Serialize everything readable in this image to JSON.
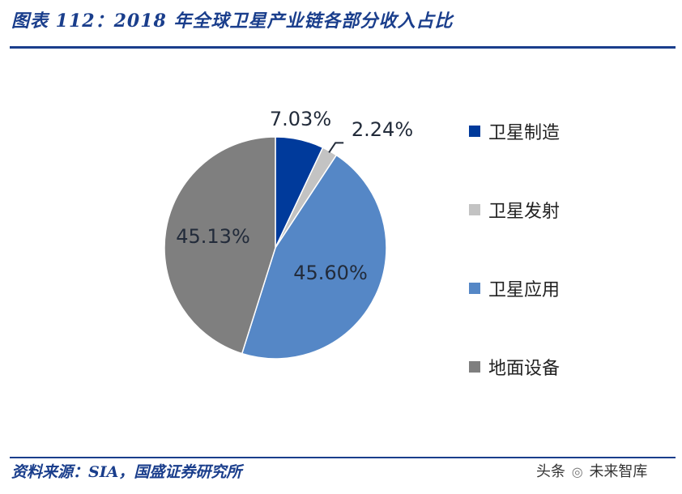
{
  "header": {
    "title": "图表 112：2018 年全球卫星产业链各部分收入占比"
  },
  "footer": {
    "source": "资料来源：SIA，国盛证券研究所",
    "watermark_left": "头条",
    "watermark_icon": "camera-icon",
    "watermark_right": "未来智库"
  },
  "chart_data": {
    "type": "pie",
    "title": "",
    "slices": [
      {
        "name": "卫星制造",
        "value": 7.03,
        "label": "7.03%",
        "color": "#003a9b"
      },
      {
        "name": "卫星发射",
        "value": 2.24,
        "label": "2.24%",
        "color": "#c3c3c3"
      },
      {
        "name": "卫星应用",
        "value": 45.6,
        "label": "45.60%",
        "color": "#5587c6"
      },
      {
        "name": "地面设备",
        "value": 45.13,
        "label": "45.13%",
        "color": "#7f7f7f"
      }
    ],
    "legend_position": "right"
  }
}
